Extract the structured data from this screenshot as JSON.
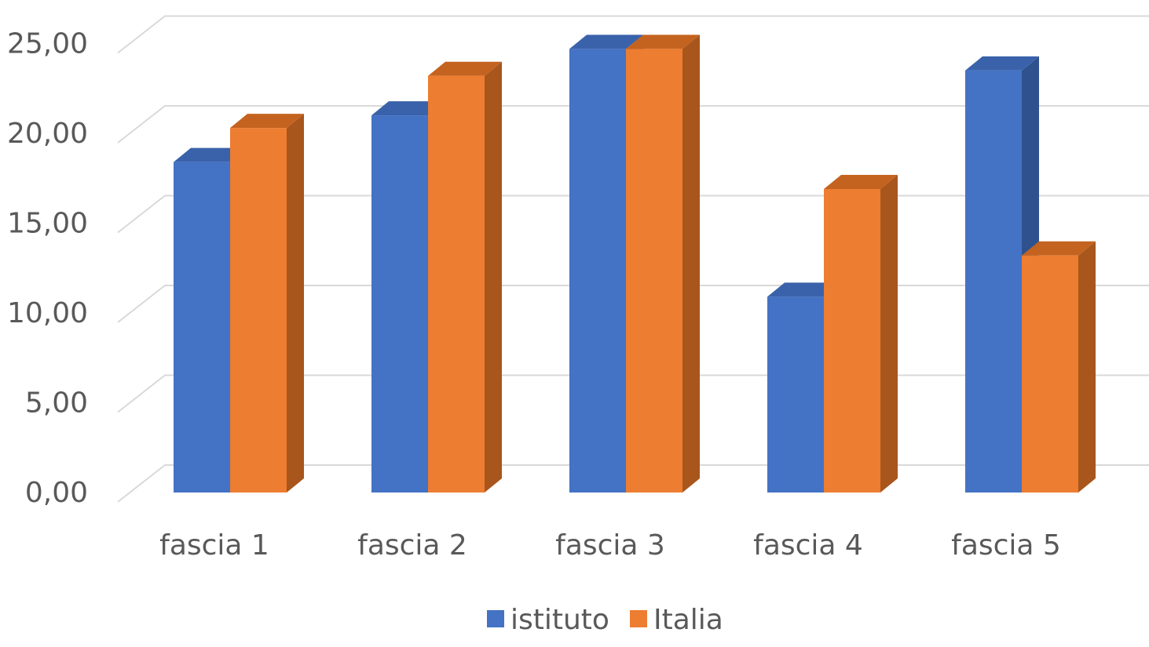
{
  "chart_data": {
    "type": "bar",
    "title": "",
    "xlabel": "",
    "ylabel": "",
    "categories": [
      "fascia 1",
      "fascia 2",
      "fascia 3",
      "fascia 4",
      "fascia 5"
    ],
    "series": [
      {
        "name": "istituto",
        "values": [
          18.4,
          21.0,
          24.7,
          10.9,
          23.5
        ]
      },
      {
        "name": "Italia",
        "values": [
          20.3,
          23.2,
          24.7,
          16.9,
          13.2
        ]
      }
    ],
    "ylim": [
      0,
      25
    ],
    "yticks": [
      "0,00",
      "5,00",
      "10,00",
      "15,00",
      "20,00",
      "25,00"
    ],
    "grid": true,
    "legend": "bottom",
    "colors": {
      "istituto": {
        "front": "#4472c4",
        "side": "#2f528f",
        "top": "#3a62aa"
      },
      "Italia": {
        "front": "#ed7d31",
        "side": "#a8561c",
        "top": "#c4631f"
      }
    }
  }
}
